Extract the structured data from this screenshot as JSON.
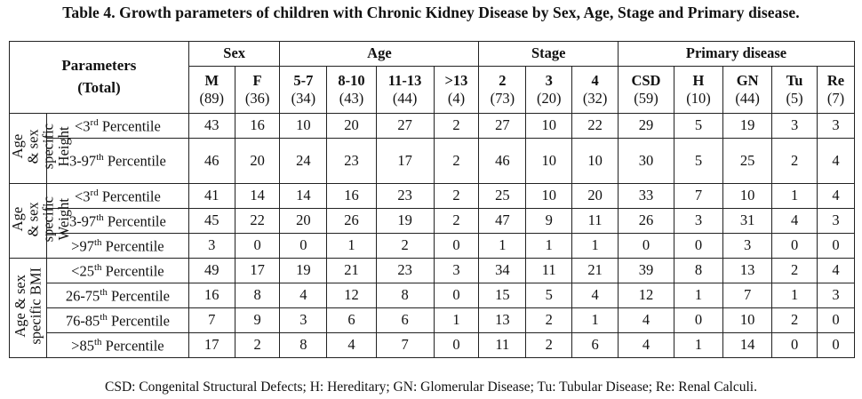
{
  "title": "Table 4. Growth parameters of children with Chronic Kidney Disease by Sex, Age, Stage and Primary disease.",
  "header": {
    "params_line1": "Parameters",
    "params_line2": "(Total)",
    "groups": [
      "Sex",
      "Age",
      "Stage",
      "Primary disease"
    ],
    "columns": [
      {
        "label": "M",
        "count": "(89)"
      },
      {
        "label": "F",
        "count": "(36)"
      },
      {
        "label": "5-7",
        "count": "(34)"
      },
      {
        "label": "8-10",
        "count": "(43)"
      },
      {
        "label": "11-13",
        "count": "(44)"
      },
      {
        "label": ">13",
        "count": "(4)"
      },
      {
        "label": "2",
        "count": "(73)"
      },
      {
        "label": "3",
        "count": "(20)"
      },
      {
        "label": "4",
        "count": "(32)"
      },
      {
        "label": "CSD",
        "count": "(59)"
      },
      {
        "label": "H",
        "count": "(10)"
      },
      {
        "label": "GN",
        "count": "(44)"
      },
      {
        "label": "Tu",
        "count": "(5)"
      },
      {
        "label": "Re",
        "count": "(7)"
      }
    ]
  },
  "sections": [
    {
      "label_lines": [
        "Age",
        "& sex",
        "specific",
        "Height"
      ],
      "rows": [
        {
          "pre": "<3",
          "sup": "rd",
          "post": " Percentile",
          "values": [
            "43",
            "16",
            "10",
            "20",
            "27",
            "2",
            "27",
            "10",
            "22",
            "29",
            "5",
            "19",
            "3",
            "3"
          ]
        },
        {
          "pre": "3-97",
          "sup": "th",
          "post": " Percentile",
          "values": [
            "46",
            "20",
            "24",
            "23",
            "17",
            "2",
            "46",
            "10",
            "10",
            "30",
            "5",
            "25",
            "2",
            "4"
          ]
        }
      ]
    },
    {
      "label_lines": [
        "Age",
        "& sex",
        "specific",
        "Weight"
      ],
      "rows": [
        {
          "pre": "<3",
          "sup": "rd",
          "post": " Percentile",
          "values": [
            "41",
            "14",
            "14",
            "16",
            "23",
            "2",
            "25",
            "10",
            "20",
            "33",
            "7",
            "10",
            "1",
            "4"
          ]
        },
        {
          "pre": "3-97",
          "sup": "th",
          "post": " Percentile",
          "values": [
            "45",
            "22",
            "20",
            "26",
            "19",
            "2",
            "47",
            "9",
            "11",
            "26",
            "3",
            "31",
            "4",
            "3"
          ]
        },
        {
          "pre": ">97",
          "sup": "th",
          "post": " Percentile",
          "values": [
            "3",
            "0",
            "0",
            "1",
            "2",
            "0",
            "1",
            "1",
            "1",
            "0",
            "0",
            "3",
            "0",
            "0"
          ]
        }
      ]
    },
    {
      "label_lines": [
        "Age & sex",
        "specific BMI"
      ],
      "rows": [
        {
          "pre": "<25",
          "sup": "th",
          "post": " Percentile",
          "values": [
            "49",
            "17",
            "19",
            "21",
            "23",
            "3",
            "34",
            "11",
            "21",
            "39",
            "8",
            "13",
            "2",
            "4"
          ]
        },
        {
          "pre": "26-75",
          "sup": "th",
          "post": " Percentile",
          "values": [
            "16",
            "8",
            "4",
            "12",
            "8",
            "0",
            "15",
            "5",
            "4",
            "12",
            "1",
            "7",
            "1",
            "3"
          ]
        },
        {
          "pre": "76-85",
          "sup": "th",
          "post": " Percentile",
          "values": [
            "7",
            "9",
            "3",
            "6",
            "6",
            "1",
            "13",
            "2",
            "1",
            "4",
            "0",
            "10",
            "2",
            "0"
          ]
        },
        {
          "pre": ">85",
          "sup": "th",
          "post": " Percentile",
          "values": [
            "17",
            "2",
            "8",
            "4",
            "7",
            "0",
            "11",
            "2",
            "6",
            "4",
            "1",
            "14",
            "0",
            "0"
          ]
        }
      ]
    }
  ],
  "footnote": "CSD: Congenital Structural Defects; H: Hereditary; GN: Glomerular Disease; Tu: Tubular Disease; Re: Renal Calculi."
}
